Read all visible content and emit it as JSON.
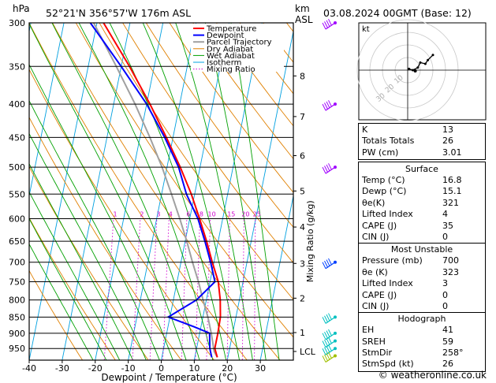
{
  "header": {
    "pressure_unit": "hPa",
    "location": "52°21'N  356°57'W  176m  ASL",
    "km_unit": "km",
    "asl_unit": "ASL",
    "datetime": "03.08.2024  00GMT  (Base: 12)"
  },
  "chart_data": {
    "type": "line",
    "subtype": "skew-T log-P diagram",
    "xlabel": "Dewpoint / Temperature (°C)",
    "ylabel_right": "Mixing Ratio (g/kg)",
    "x_ticks": [
      -40,
      -30,
      -20,
      -10,
      0,
      10,
      20,
      30
    ],
    "pressure_levels": [
      300,
      350,
      400,
      450,
      500,
      550,
      600,
      650,
      700,
      750,
      800,
      850,
      900,
      950
    ],
    "altitude_km": [
      {
        "km": "8",
        "p": 362
      },
      {
        "km": "7",
        "p": 418
      },
      {
        "km": "6",
        "p": 480
      },
      {
        "km": "5",
        "p": 544
      },
      {
        "km": "4",
        "p": 618
      },
      {
        "km": "3",
        "p": 703
      },
      {
        "km": "2",
        "p": 795
      },
      {
        "km": "1",
        "p": 898
      },
      {
        "km": "LCL",
        "p": 960
      }
    ],
    "mixing_ratio_labels": [
      "1",
      "2",
      "3",
      "4",
      "6",
      "8",
      "10",
      "15",
      "20",
      "25"
    ],
    "mixing_ratio_values": [
      1,
      2,
      3,
      4,
      6,
      8,
      10,
      15,
      20,
      25
    ],
    "legend": [
      "Temperature",
      "Dewpoint",
      "Parcel Trajectory",
      "Dry Adiabat",
      "Wet Adiabat",
      "Isotherm",
      "Mixing Ratio"
    ],
    "colors": {
      "temperature": "#ff0000",
      "dewpoint": "#0000ff",
      "parcel": "#a0a0a0",
      "dry_adiabat": "#e08000",
      "wet_adiabat": "#00a000",
      "isotherm": "#00a0e0",
      "mixing_ratio": "#d000d0"
    },
    "series": [
      {
        "name": "Temperature",
        "points": [
          [
            980,
            16.8
          ],
          [
            950,
            15.5
          ],
          [
            900,
            15.5
          ],
          [
            850,
            15.3
          ],
          [
            800,
            14.2
          ],
          [
            750,
            12.5
          ],
          [
            700,
            9.5
          ],
          [
            650,
            6.5
          ],
          [
            600,
            3.0
          ],
          [
            550,
            -1.0
          ],
          [
            500,
            -6.0
          ],
          [
            450,
            -12.0
          ],
          [
            400,
            -19.0
          ],
          [
            350,
            -27.5
          ],
          [
            300,
            -38.0
          ]
        ]
      },
      {
        "name": "Dewpoint",
        "points": [
          [
            980,
            15.1
          ],
          [
            950,
            14.0
          ],
          [
            900,
            13.0
          ],
          [
            880,
            8.0
          ],
          [
            850,
            -0.5
          ],
          [
            800,
            7.0
          ],
          [
            750,
            11.5
          ],
          [
            700,
            9.0
          ],
          [
            650,
            6.0
          ],
          [
            600,
            2.5
          ],
          [
            550,
            -2.5
          ],
          [
            500,
            -6.5
          ],
          [
            450,
            -12.5
          ],
          [
            400,
            -20.0
          ],
          [
            350,
            -30.0
          ],
          [
            300,
            -42.0
          ]
        ]
      },
      {
        "name": "Parcel Trajectory",
        "points": [
          [
            980,
            16.8
          ],
          [
            960,
            15.5
          ],
          [
            900,
            13.5
          ],
          [
            850,
            11.5
          ],
          [
            800,
            9.0
          ],
          [
            750,
            6.5
          ],
          [
            700,
            3.5
          ],
          [
            650,
            0.5
          ],
          [
            600,
            -3.0
          ],
          [
            550,
            -7.0
          ],
          [
            500,
            -11.5
          ],
          [
            450,
            -17.0
          ],
          [
            400,
            -23.5
          ],
          [
            350,
            -31.5
          ],
          [
            300,
            -41.0
          ]
        ]
      }
    ]
  },
  "hodograph": {
    "label": "kt",
    "rings_kt": [
      10,
      20,
      30,
      40
    ],
    "ring_labels": [
      "10",
      "20",
      "30"
    ],
    "trace_kt": [
      [
        1,
        1
      ],
      [
        4,
        0
      ],
      [
        8,
        2
      ],
      [
        10,
        6
      ],
      [
        14,
        5
      ],
      [
        16,
        8
      ],
      [
        20,
        12
      ]
    ],
    "storm_motion_kt": {
      "dir": 258,
      "speed": 26
    }
  },
  "winds": [
    {
      "p": 300,
      "color": "#a000ff"
    },
    {
      "p": 400,
      "color": "#a000ff"
    },
    {
      "p": 500,
      "color": "#a000ff"
    },
    {
      "p": 700,
      "color": "#0040ff"
    },
    {
      "p": 850,
      "color": "#00c0c0"
    },
    {
      "p": 900,
      "color": "#00c0c0"
    },
    {
      "p": 925,
      "color": "#00c0c0"
    },
    {
      "p": 950,
      "color": "#00c0c0"
    },
    {
      "p": 975,
      "color": "#a0c000"
    }
  ],
  "indices": [
    {
      "label": "K",
      "value": "13"
    },
    {
      "label": "Totals Totals",
      "value": "26"
    },
    {
      "label": "PW (cm)",
      "value": "3.01"
    }
  ],
  "surface": {
    "title": "Surface",
    "rows": [
      {
        "label": "Temp (°C)",
        "value": "16.8"
      },
      {
        "label": "Dewp (°C)",
        "value": "15.1"
      },
      {
        "label": "θe(K)",
        "value": "321"
      },
      {
        "label": "Lifted Index",
        "value": "4"
      },
      {
        "label": "CAPE (J)",
        "value": "35"
      },
      {
        "label": "CIN (J)",
        "value": "0"
      }
    ]
  },
  "most_unstable": {
    "title": "Most Unstable",
    "rows": [
      {
        "label": "Pressure (mb)",
        "value": "700"
      },
      {
        "label": "θe (K)",
        "value": "323"
      },
      {
        "label": "Lifted Index",
        "value": "3"
      },
      {
        "label": "CAPE (J)",
        "value": "0"
      },
      {
        "label": "CIN (J)",
        "value": "0"
      }
    ]
  },
  "hodograph_table": {
    "title": "Hodograph",
    "rows": [
      {
        "label": "EH",
        "value": "41"
      },
      {
        "label": "SREH",
        "value": "59"
      },
      {
        "label": "StmDir",
        "value": "258°"
      },
      {
        "label": "StmSpd (kt)",
        "value": "26"
      }
    ]
  },
  "footer": "© weatheronline.co.uk"
}
